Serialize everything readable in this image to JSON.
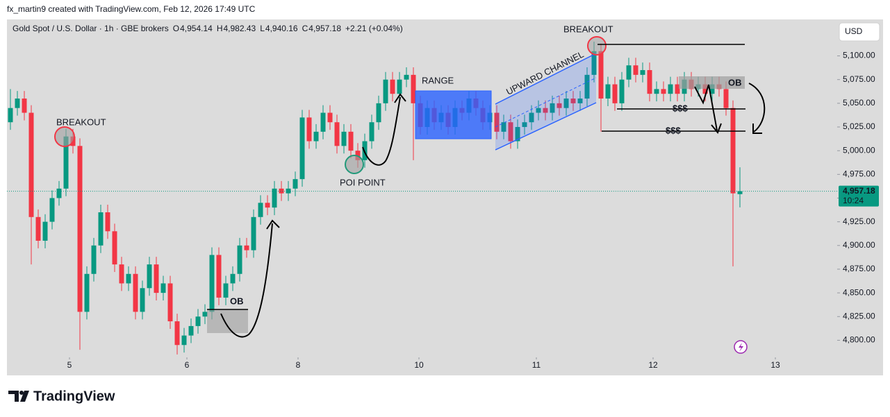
{
  "attribution": "fx_martin9 created with TradingView.com, Feb 12, 2026 17:49 UTC",
  "brand": "TradingView",
  "currency_button": "USD",
  "chart_data": {
    "type": "candlestick",
    "title": "Gold Spot / U.S. Dollar · 1h · GBE brokers",
    "ohlc_header": [
      {
        "key": "O",
        "value": "4,954.14"
      },
      {
        "key": "H",
        "value": "4,982.43"
      },
      {
        "key": "L",
        "value": "4,940.16"
      },
      {
        "key": "C",
        "value": "4,957.18"
      }
    ],
    "change": "+2.21 (+0.04%)",
    "last_price_label": "4,957.18",
    "countdown": "10:24",
    "up_color": "#089981",
    "down_color": "#f23645",
    "grid": false,
    "xlim": [
      -0.5,
      119
    ],
    "xticks": [
      {
        "value": 8.5,
        "label": "5"
      },
      {
        "value": 25.4,
        "label": "6"
      },
      {
        "value": 41.4,
        "label": "8"
      },
      {
        "value": 58.8,
        "label": "10"
      },
      {
        "value": 75.7,
        "label": "11"
      },
      {
        "value": 92.5,
        "label": "12"
      },
      {
        "value": 110.1,
        "label": "13"
      }
    ],
    "ylim": [
      4782,
      5137
    ],
    "yticks": [
      {
        "value": 4800,
        "label": "4,800.00"
      },
      {
        "value": 4825,
        "label": "4,825.00"
      },
      {
        "value": 4850,
        "label": "4,850.00"
      },
      {
        "value": 4875,
        "label": "4,875.00"
      },
      {
        "value": 4900,
        "label": "4,900.00"
      },
      {
        "value": 4925,
        "label": "4,925.00"
      },
      {
        "value": 4950,
        "label": "4,950.00"
      },
      {
        "value": 4975,
        "label": "4,975.00"
      },
      {
        "value": 5000,
        "label": "5,000.00"
      },
      {
        "value": 5025,
        "label": "5,025.00"
      },
      {
        "value": 5050,
        "label": "5,050.00"
      },
      {
        "value": 5075,
        "label": "5,075.00"
      },
      {
        "value": 5100,
        "label": "5,100.00"
      }
    ],
    "open": [
      5030,
      5045,
      5055,
      5040,
      4930,
      4905,
      4925,
      4950,
      4960,
      5015,
      5005,
      4830,
      4870,
      4900,
      4935,
      4915,
      4880,
      4860,
      4870,
      4830,
      4855,
      4880,
      4850,
      4860,
      4820,
      4795,
      4805,
      4815,
      4825,
      4830,
      4890,
      4845,
      4860,
      4870,
      4900,
      4895,
      4930,
      4945,
      4940,
      4960,
      4955,
      4960,
      4970,
      5035,
      5010,
      5020,
      5040,
      5030,
      5005,
      5020,
      5000,
      4990,
      5010,
      5030,
      5050,
      5075,
      5060,
      5075,
      5080,
      5050,
      5025,
      5045,
      5030,
      5040,
      5025,
      5045,
      5040,
      5055,
      5045,
      5030,
      5040,
      5020,
      5030,
      5010,
      5025,
      5030,
      5040,
      5045,
      5040,
      5050,
      5045,
      5055,
      5050,
      5055,
      5080,
      5105,
      5055,
      5070,
      5050,
      5075,
      5090,
      5080,
      5085,
      5060,
      5065,
      5060,
      5070,
      5060,
      5075,
      5065,
      5070,
      5060,
      5070,
      5065,
      5045,
      4954.14
    ],
    "high": [
      5065,
      5063,
      5063,
      5048,
      4938,
      4933,
      4958,
      4968,
      5023,
      5023,
      5013,
      4878,
      4908,
      4943,
      4943,
      4923,
      4888,
      4878,
      4878,
      4863,
      4888,
      4888,
      4868,
      4868,
      4828,
      4813,
      4823,
      4833,
      4838,
      4898,
      4898,
      4868,
      4878,
      4908,
      4908,
      4938,
      4953,
      4953,
      4968,
      4968,
      4968,
      4978,
      5043,
      5043,
      5028,
      5048,
      5048,
      5038,
      5028,
      5028,
      5008,
      5018,
      5038,
      5058,
      5083,
      5083,
      5083,
      5088,
      5088,
      5058,
      5053,
      5053,
      5048,
      5048,
      5053,
      5053,
      5063,
      5063,
      5053,
      5048,
      5048,
      5038,
      5038,
      5033,
      5038,
      5048,
      5053,
      5053,
      5058,
      5058,
      5063,
      5063,
      5063,
      5088,
      5115,
      5113,
      5078,
      5078,
      5083,
      5098,
      5098,
      5093,
      5093,
      5073,
      5073,
      5078,
      5078,
      5083,
      5083,
      5078,
      5078,
      5078,
      5078,
      5073,
      5053,
      4982.43
    ],
    "low": [
      5022,
      5037,
      5032,
      4880,
      4897,
      4897,
      4917,
      4942,
      4952,
      4997,
      4790,
      4822,
      4862,
      4892,
      4907,
      4872,
      4852,
      4852,
      4822,
      4822,
      4847,
      4842,
      4842,
      4812,
      4785,
      4787,
      4797,
      4807,
      4817,
      4822,
      4837,
      4837,
      4852,
      4862,
      4887,
      4887,
      4922,
      4932,
      4932,
      4947,
      4947,
      4952,
      4962,
      5002,
      5002,
      5012,
      5022,
      4997,
      4997,
      4992,
      4982,
      4982,
      5002,
      5022,
      5042,
      5052,
      5052,
      5067,
      4990,
      5017,
      5017,
      5022,
      5022,
      5017,
      5017,
      5032,
      5032,
      5037,
      5022,
      5022,
      5012,
      5012,
      5002,
      5002,
      5017,
      5022,
      5032,
      5032,
      5032,
      5037,
      5037,
      5042,
      5042,
      5047,
      5072,
      5020,
      5047,
      5042,
      5042,
      5067,
      5072,
      5072,
      5052,
      5052,
      5052,
      5052,
      5052,
      5052,
      5057,
      5057,
      5052,
      5052,
      5057,
      5037,
      4878,
      4940.16
    ],
    "close": [
      5045,
      5055,
      5040,
      4930,
      4905,
      4925,
      4950,
      4960,
      5015,
      5005,
      4830,
      4870,
      4900,
      4935,
      4915,
      4880,
      4860,
      4870,
      4830,
      4855,
      4880,
      4850,
      4860,
      4820,
      4795,
      4805,
      4815,
      4825,
      4830,
      4890,
      4845,
      4860,
      4870,
      4900,
      4895,
      4930,
      4945,
      4940,
      4960,
      4955,
      4960,
      4970,
      5035,
      5010,
      5020,
      5040,
      5030,
      5005,
      5020,
      5000,
      4990,
      5010,
      5030,
      5050,
      5075,
      5060,
      5075,
      5080,
      5050,
      5025,
      5045,
      5030,
      5040,
      5025,
      5045,
      5040,
      5055,
      5045,
      5030,
      5040,
      5020,
      5030,
      5010,
      5025,
      5030,
      5040,
      5045,
      5040,
      5050,
      5045,
      5055,
      5050,
      5055,
      5080,
      5105,
      5055,
      5070,
      5050,
      5075,
      5090,
      5080,
      5085,
      5060,
      5065,
      5060,
      5070,
      5060,
      5075,
      5065,
      5070,
      5060,
      5070,
      5065,
      5045,
      4955,
      4957.18
    ],
    "annotations": [
      "BREAKOUT",
      "POI POINT",
      "RANGE",
      "UPWARD CHANNEL",
      "BREAKOUT",
      "OB",
      "$$$",
      "$$$",
      "OB"
    ]
  }
}
